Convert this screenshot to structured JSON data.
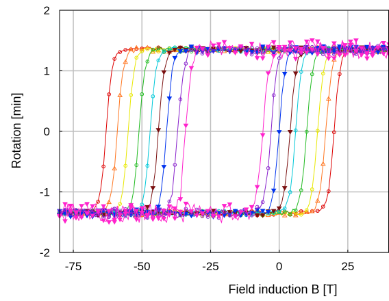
{
  "chart_data": {
    "type": "scatter",
    "title": "",
    "xlabel": "Field induction B [T]",
    "ylabel": "Rotation [min]",
    "xlim": [
      -80,
      40
    ],
    "ylim": [
      -2,
      2
    ],
    "x_ticks": [
      -75,
      -50,
      -25,
      0,
      25
    ],
    "y_ticks": [
      -2,
      -1,
      0,
      1,
      2
    ],
    "grid": true,
    "legend": "none",
    "saturation": 1.35,
    "series": [
      {
        "color": "#dd0000",
        "marker": "circle",
        "coercive_down": -63,
        "coercive_up": 20,
        "width": 2.2,
        "noise": 0.02
      },
      {
        "color": "#ff7722",
        "marker": "triangle-up",
        "coercive_down": -59,
        "coercive_up": 17,
        "width": 2.2,
        "noise": 0.02
      },
      {
        "color": "#e8e800",
        "marker": "circle",
        "coercive_down": -55,
        "coercive_up": 14,
        "width": 2.2,
        "noise": 0.02
      },
      {
        "color": "#22bb22",
        "marker": "circle",
        "coercive_down": -51,
        "coercive_up": 10,
        "width": 2.2,
        "noise": 0.02
      },
      {
        "color": "#00c8d8",
        "marker": "circle",
        "coercive_down": -47,
        "coercive_up": 6,
        "width": 2.2,
        "noise": 0.02
      },
      {
        "color": "#7a1010",
        "marker": "triangle-down",
        "coercive_down": -44,
        "coercive_up": 4,
        "width": 2.2,
        "noise": 0.02
      },
      {
        "color": "#0033ee",
        "marker": "triangle-down",
        "coercive_down": -41,
        "coercive_up": 0,
        "width": 2.2,
        "noise": 0.03
      },
      {
        "color": "#8822cc",
        "marker": "circle",
        "coercive_down": -37,
        "coercive_up": -3,
        "width": 2.2,
        "noise": 0.04
      },
      {
        "color": "#ff22cc",
        "marker": "triangle-down",
        "coercive_down": -34,
        "coercive_up": -6,
        "width": 2.2,
        "noise": 0.08
      }
    ]
  }
}
